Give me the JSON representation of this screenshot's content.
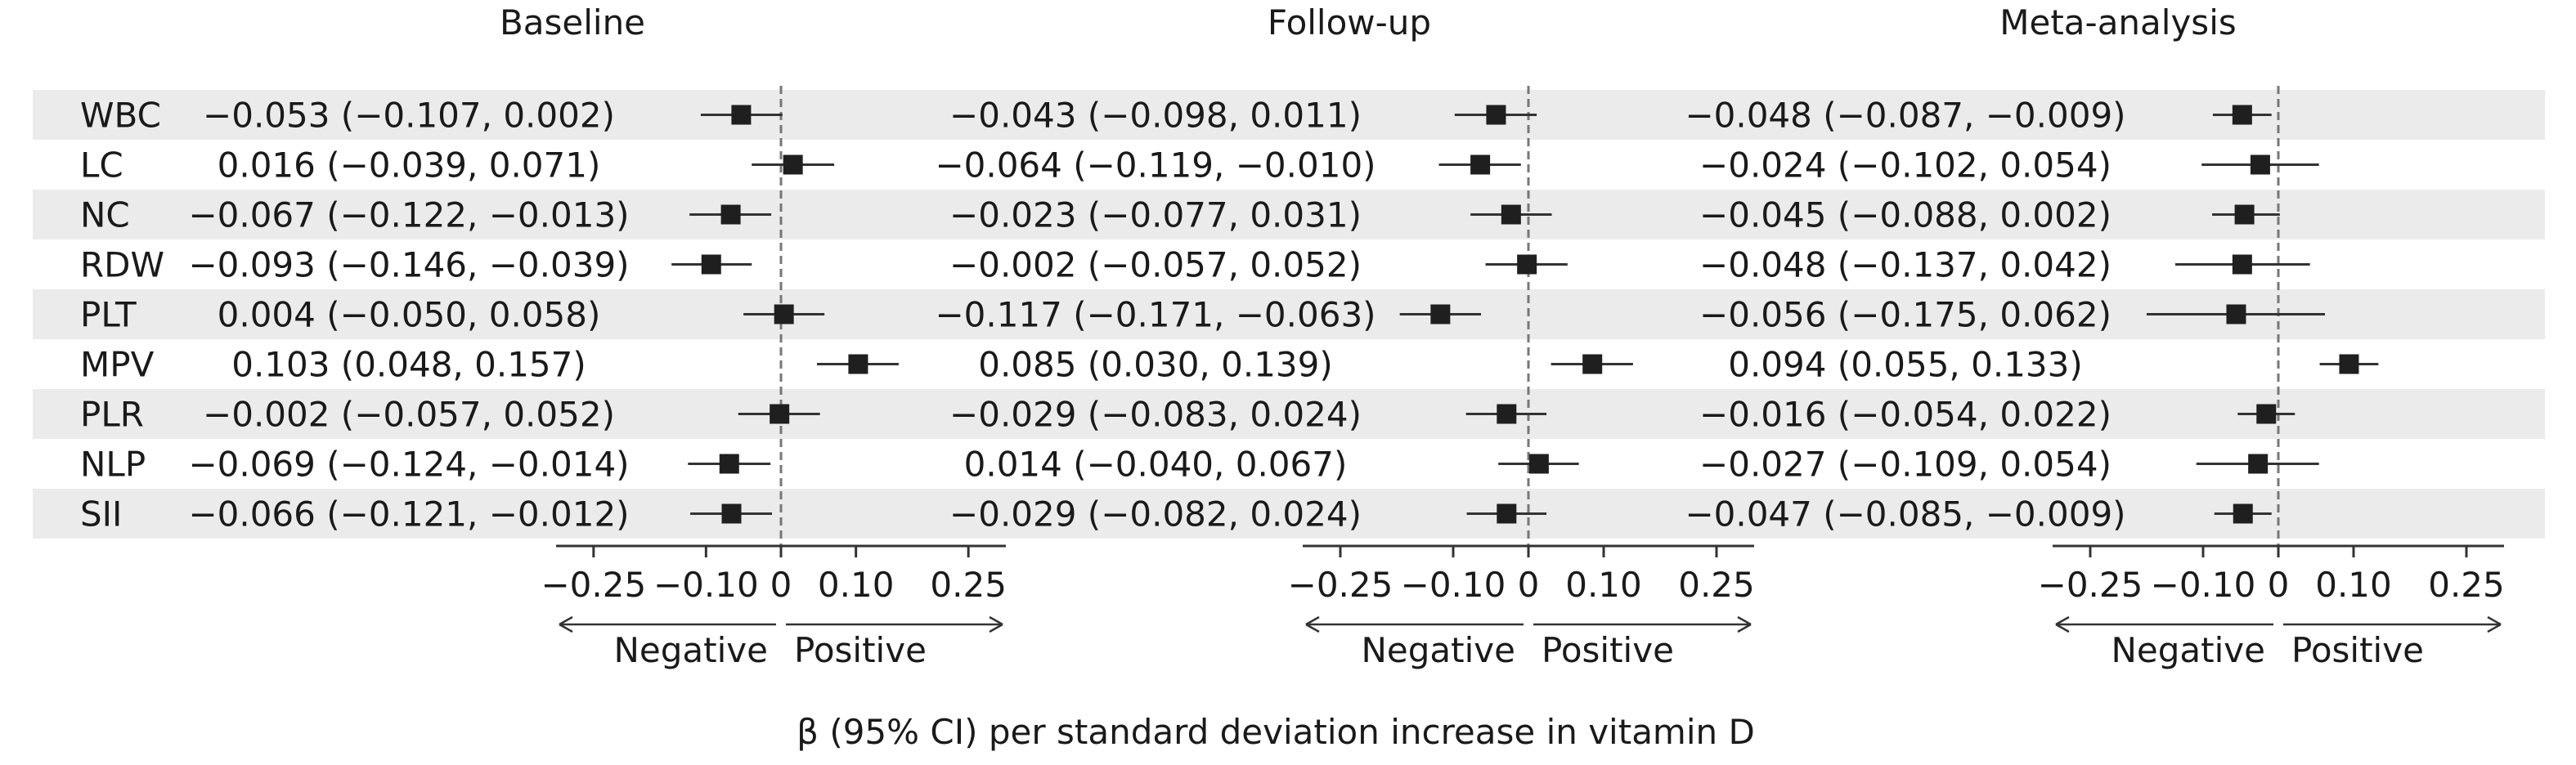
{
  "figure": {
    "footer_label": "β (95% CI) per standard deviation increase in vitamin D",
    "direction_left": "Negative",
    "direction_right": "Positive",
    "colors": {
      "stripe": "#ebebeb",
      "marker": "#1f1f1f",
      "axis": "#333333",
      "ref_line": "#777777"
    }
  },
  "chart_data": [
    {
      "type": "forest",
      "title": "Baseline",
      "rows": [
        {
          "label": "WBC",
          "ci_text": "−0.053 (−0.107, 0.002)",
          "beta": -0.053,
          "lower": -0.107,
          "upper": 0.002
        },
        {
          "label": "LC",
          "ci_text": "0.016 (−0.039, 0.071)",
          "beta": 0.016,
          "lower": -0.039,
          "upper": 0.071
        },
        {
          "label": "NC",
          "ci_text": "−0.067 (−0.122, −0.013)",
          "beta": -0.067,
          "lower": -0.122,
          "upper": -0.013
        },
        {
          "label": "RDW",
          "ci_text": "−0.093 (−0.146, −0.039)",
          "beta": -0.093,
          "lower": -0.146,
          "upper": -0.039
        },
        {
          "label": "PLT",
          "ci_text": "0.004 (−0.050, 0.058)",
          "beta": 0.004,
          "lower": -0.05,
          "upper": 0.058
        },
        {
          "label": "MPV",
          "ci_text": "0.103 (0.048, 0.157)",
          "beta": 0.103,
          "lower": 0.048,
          "upper": 0.157
        },
        {
          "label": "PLR",
          "ci_text": "−0.002 (−0.057, 0.052)",
          "beta": -0.002,
          "lower": -0.057,
          "upper": 0.052
        },
        {
          "label": "NLP",
          "ci_text": "−0.069 (−0.124, −0.014)",
          "beta": -0.069,
          "lower": -0.124,
          "upper": -0.014
        },
        {
          "label": "SII",
          "ci_text": "−0.066 (−0.121, −0.012)",
          "beta": -0.066,
          "lower": -0.121,
          "upper": -0.012
        }
      ],
      "xlim": [
        -0.3,
        0.3
      ],
      "xticks": [
        -0.25,
        -0.1,
        0,
        0.1,
        0.25
      ],
      "xtick_labels": [
        "−0.25",
        "−0.10",
        "0",
        "0.10",
        "0.25"
      ]
    },
    {
      "type": "forest",
      "title": "Follow-up",
      "rows": [
        {
          "label": "WBC",
          "ci_text": "−0.043 (−0.098, 0.011)",
          "beta": -0.043,
          "lower": -0.098,
          "upper": 0.011
        },
        {
          "label": "LC",
          "ci_text": "−0.064 (−0.119, −0.010)",
          "beta": -0.064,
          "lower": -0.119,
          "upper": -0.01
        },
        {
          "label": "NC",
          "ci_text": "−0.023 (−0.077, 0.031)",
          "beta": -0.023,
          "lower": -0.077,
          "upper": 0.031
        },
        {
          "label": "RDW",
          "ci_text": "−0.002 (−0.057, 0.052)",
          "beta": -0.002,
          "lower": -0.057,
          "upper": 0.052
        },
        {
          "label": "PLT",
          "ci_text": "−0.117 (−0.171, −0.063)",
          "beta": -0.117,
          "lower": -0.171,
          "upper": -0.063
        },
        {
          "label": "MPV",
          "ci_text": "0.085 (0.030, 0.139)",
          "beta": 0.085,
          "lower": 0.03,
          "upper": 0.139
        },
        {
          "label": "PLR",
          "ci_text": "−0.029 (−0.083, 0.024)",
          "beta": -0.029,
          "lower": -0.083,
          "upper": 0.024
        },
        {
          "label": "NLP",
          "ci_text": "0.014 (−0.040, 0.067)",
          "beta": 0.014,
          "lower": -0.04,
          "upper": 0.067
        },
        {
          "label": "SII",
          "ci_text": "−0.029 (−0.082, 0.024)",
          "beta": -0.029,
          "lower": -0.082,
          "upper": 0.024
        }
      ],
      "xlim": [
        -0.3,
        0.3
      ],
      "xticks": [
        -0.25,
        -0.1,
        0,
        0.1,
        0.25
      ],
      "xtick_labels": [
        "−0.25",
        "−0.10",
        "0",
        "0.10",
        "0.25"
      ]
    },
    {
      "type": "forest",
      "title": "Meta-analysis",
      "rows": [
        {
          "label": "WBC",
          "ci_text": "−0.048 (−0.087, −0.009)",
          "beta": -0.048,
          "lower": -0.087,
          "upper": -0.009
        },
        {
          "label": "LC",
          "ci_text": "−0.024 (−0.102, 0.054)",
          "beta": -0.024,
          "lower": -0.102,
          "upper": 0.054
        },
        {
          "label": "NC",
          "ci_text": "−0.045 (−0.088, 0.002)",
          "beta": -0.045,
          "lower": -0.088,
          "upper": 0.002
        },
        {
          "label": "RDW",
          "ci_text": "−0.048 (−0.137, 0.042)",
          "beta": -0.048,
          "lower": -0.137,
          "upper": 0.042
        },
        {
          "label": "PLT",
          "ci_text": "−0.056 (−0.175, 0.062)",
          "beta": -0.056,
          "lower": -0.175,
          "upper": 0.062
        },
        {
          "label": "MPV",
          "ci_text": "0.094 (0.055, 0.133)",
          "beta": 0.094,
          "lower": 0.055,
          "upper": 0.133
        },
        {
          "label": "PLR",
          "ci_text": "−0.016 (−0.054, 0.022)",
          "beta": -0.016,
          "lower": -0.054,
          "upper": 0.022
        },
        {
          "label": "NLP",
          "ci_text": "−0.027 (−0.109, 0.054)",
          "beta": -0.027,
          "lower": -0.109,
          "upper": 0.054
        },
        {
          "label": "SII",
          "ci_text": "−0.047 (−0.085, −0.009)",
          "beta": -0.047,
          "lower": -0.085,
          "upper": -0.009
        }
      ],
      "xlim": [
        -0.3,
        0.3
      ],
      "xticks": [
        -0.25,
        -0.1,
        0,
        0.1,
        0.25
      ],
      "xtick_labels": [
        "−0.25",
        "−0.10",
        "0",
        "0.10",
        "0.25"
      ]
    }
  ]
}
